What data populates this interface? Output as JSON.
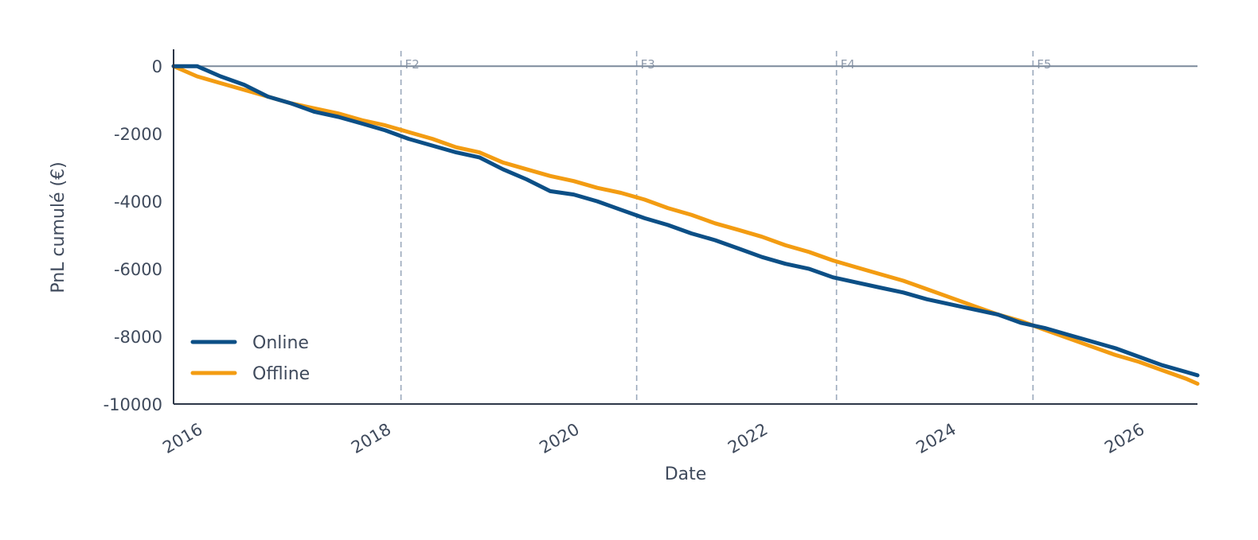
{
  "chart_data": {
    "type": "line",
    "xlabel": "Date",
    "ylabel": "PnL cumulé (€)",
    "x_range": [
      "2016-01-01",
      "2026-11-15"
    ],
    "ylim": [
      -10000,
      500
    ],
    "x_ticks": [
      "2016",
      "2018",
      "2020",
      "2022",
      "2024",
      "2026"
    ],
    "y_ticks": [
      "0",
      "-2000",
      "-4000",
      "-6000",
      "-8000",
      "-10000"
    ],
    "y_tick_values": [
      0,
      -2000,
      -4000,
      -6000,
      -8000,
      -10000
    ],
    "grid": false,
    "zero_line": true,
    "legend_position": "bottom-left",
    "vertical_markers": [
      {
        "label": "F2",
        "date": "2018-06-01"
      },
      {
        "label": "F3",
        "date": "2020-12-01"
      },
      {
        "label": "F4",
        "date": "2023-01-15"
      },
      {
        "label": "F5",
        "date": "2025-02-15"
      }
    ],
    "series": [
      {
        "name": "Online",
        "color": "#0c4f86",
        "points": [
          [
            "2016-01-01",
            0
          ],
          [
            "2016-04-01",
            0
          ],
          [
            "2016-07-01",
            -300
          ],
          [
            "2016-10-01",
            -550
          ],
          [
            "2017-01-01",
            -900
          ],
          [
            "2017-04-01",
            -1100
          ],
          [
            "2017-07-01",
            -1350
          ],
          [
            "2017-10-01",
            -1500
          ],
          [
            "2018-01-01",
            -1700
          ],
          [
            "2018-04-01",
            -1900
          ],
          [
            "2018-07-01",
            -2150
          ],
          [
            "2018-10-01",
            -2350
          ],
          [
            "2019-01-01",
            -2550
          ],
          [
            "2019-04-01",
            -2700
          ],
          [
            "2019-07-01",
            -3050
          ],
          [
            "2019-10-01",
            -3350
          ],
          [
            "2020-01-01",
            -3700
          ],
          [
            "2020-04-01",
            -3800
          ],
          [
            "2020-07-01",
            -4000
          ],
          [
            "2020-10-01",
            -4250
          ],
          [
            "2021-01-01",
            -4500
          ],
          [
            "2021-04-01",
            -4700
          ],
          [
            "2021-07-01",
            -4950
          ],
          [
            "2021-10-01",
            -5150
          ],
          [
            "2022-01-01",
            -5400
          ],
          [
            "2022-04-01",
            -5650
          ],
          [
            "2022-07-01",
            -5850
          ],
          [
            "2022-10-01",
            -6000
          ],
          [
            "2023-01-01",
            -6250
          ],
          [
            "2023-04-01",
            -6400
          ],
          [
            "2023-07-01",
            -6550
          ],
          [
            "2023-10-01",
            -6700
          ],
          [
            "2024-01-01",
            -6900
          ],
          [
            "2024-04-01",
            -7050
          ],
          [
            "2024-07-01",
            -7200
          ],
          [
            "2024-10-01",
            -7350
          ],
          [
            "2025-01-01",
            -7600
          ],
          [
            "2025-04-01",
            -7750
          ],
          [
            "2025-07-01",
            -7950
          ],
          [
            "2025-10-01",
            -8150
          ],
          [
            "2026-01-01",
            -8350
          ],
          [
            "2026-04-01",
            -8600
          ],
          [
            "2026-07-01",
            -8850
          ],
          [
            "2026-10-01",
            -9050
          ],
          [
            "2026-11-15",
            -9150
          ]
        ]
      },
      {
        "name": "Offline",
        "color": "#f39c12",
        "points": [
          [
            "2016-01-01",
            0
          ],
          [
            "2016-04-01",
            -300
          ],
          [
            "2016-07-01",
            -500
          ],
          [
            "2016-10-01",
            -700
          ],
          [
            "2017-01-01",
            -900
          ],
          [
            "2017-04-01",
            -1100
          ],
          [
            "2017-07-01",
            -1250
          ],
          [
            "2017-10-01",
            -1400
          ],
          [
            "2018-01-01",
            -1600
          ],
          [
            "2018-04-01",
            -1750
          ],
          [
            "2018-07-01",
            -1950
          ],
          [
            "2018-10-01",
            -2150
          ],
          [
            "2019-01-01",
            -2400
          ],
          [
            "2019-04-01",
            -2550
          ],
          [
            "2019-07-01",
            -2850
          ],
          [
            "2019-10-01",
            -3050
          ],
          [
            "2020-01-01",
            -3250
          ],
          [
            "2020-04-01",
            -3400
          ],
          [
            "2020-07-01",
            -3600
          ],
          [
            "2020-10-01",
            -3750
          ],
          [
            "2021-01-01",
            -3950
          ],
          [
            "2021-04-01",
            -4200
          ],
          [
            "2021-07-01",
            -4400
          ],
          [
            "2021-10-01",
            -4650
          ],
          [
            "2022-01-01",
            -4850
          ],
          [
            "2022-04-01",
            -5050
          ],
          [
            "2022-07-01",
            -5300
          ],
          [
            "2022-10-01",
            -5500
          ],
          [
            "2023-01-01",
            -5750
          ],
          [
            "2023-04-01",
            -5950
          ],
          [
            "2023-07-01",
            -6150
          ],
          [
            "2023-10-01",
            -6350
          ],
          [
            "2024-01-01",
            -6600
          ],
          [
            "2024-04-01",
            -6850
          ],
          [
            "2024-07-01",
            -7100
          ],
          [
            "2024-10-01",
            -7350
          ],
          [
            "2025-01-01",
            -7550
          ],
          [
            "2025-04-01",
            -7800
          ],
          [
            "2025-07-01",
            -8050
          ],
          [
            "2025-10-01",
            -8300
          ],
          [
            "2026-01-01",
            -8550
          ],
          [
            "2026-04-01",
            -8750
          ],
          [
            "2026-07-01",
            -9000
          ],
          [
            "2026-10-01",
            -9250
          ],
          [
            "2026-11-15",
            -9400
          ]
        ]
      }
    ],
    "style": {
      "axis_color": "#2d3748",
      "zero_line_color": "#7c8a9c",
      "marker_line_color": "#9aa8bb"
    }
  }
}
